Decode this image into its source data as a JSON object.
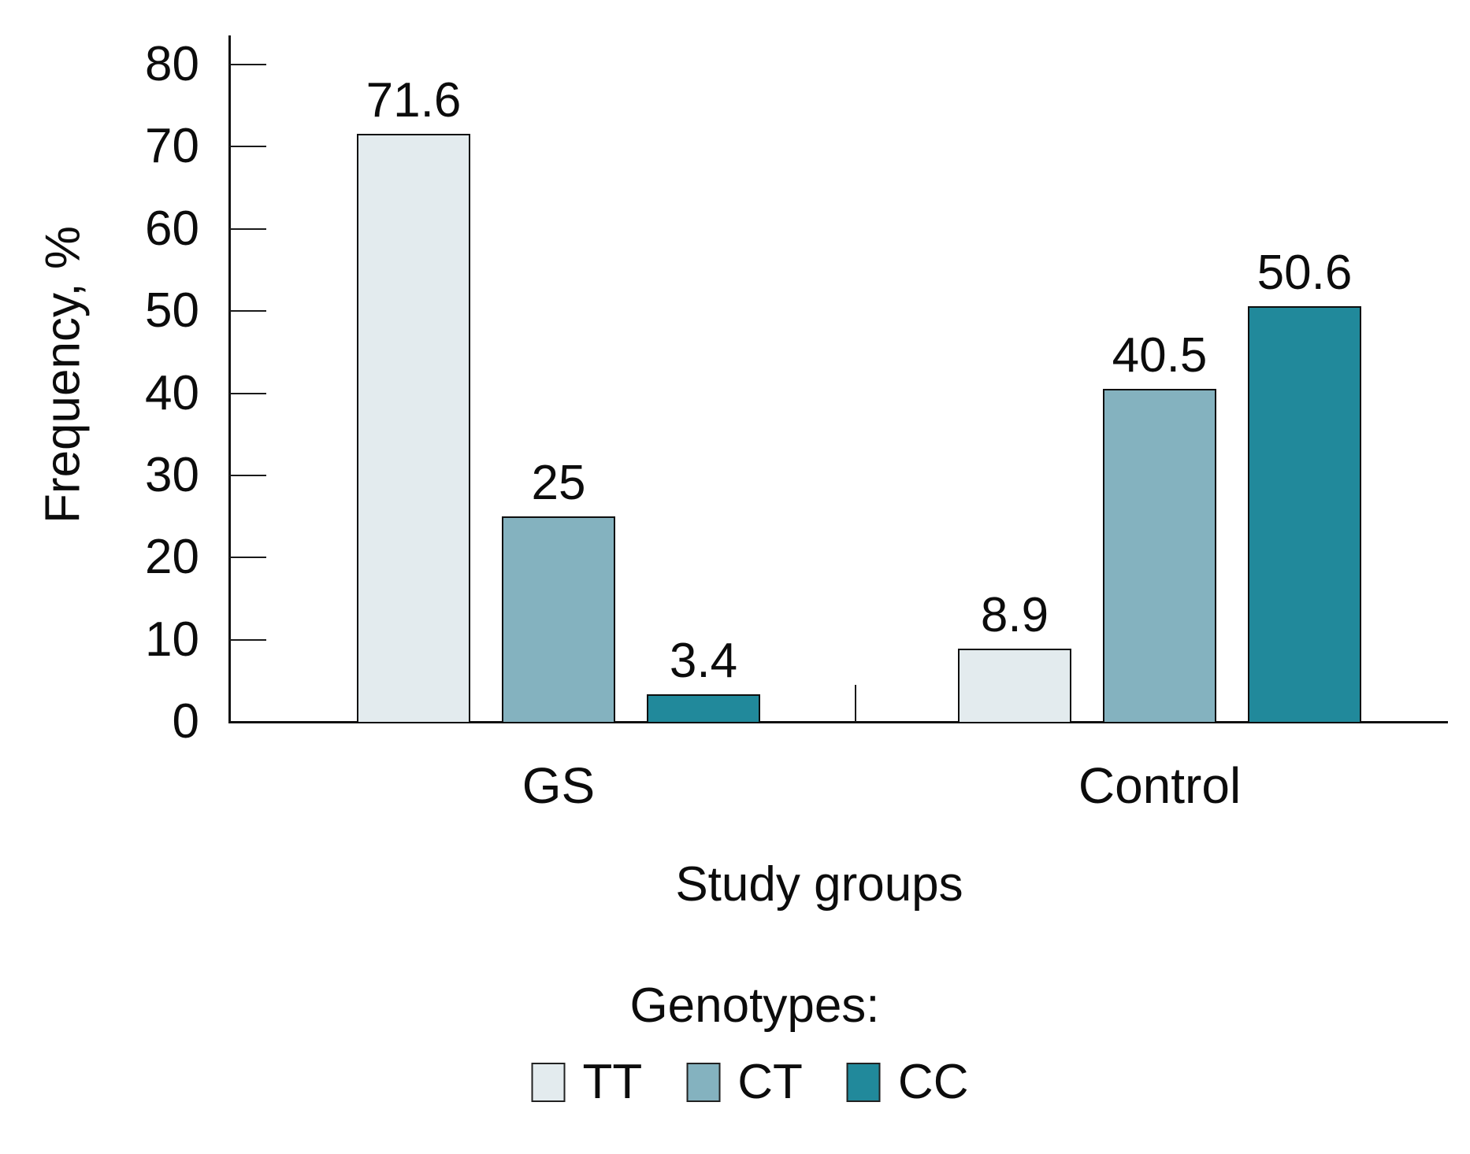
{
  "chart_data": {
    "type": "bar",
    "title": "",
    "ylabel": "Frequency, %",
    "xlabel": "Study groups",
    "categories": [
      "GS",
      "Control"
    ],
    "series": [
      {
        "name": "TT",
        "color": "#e3ebee",
        "values": [
          71.6,
          8.9
        ],
        "value_labels": [
          "71.6",
          "8.9"
        ]
      },
      {
        "name": "CT",
        "color": "#84b2bf",
        "values": [
          25,
          40.5
        ],
        "value_labels": [
          "25",
          "40.5"
        ]
      },
      {
        "name": "CC",
        "color": "#21899b",
        "values": [
          3.4,
          50.6
        ],
        "value_labels": [
          "3.4",
          "50.6"
        ]
      }
    ],
    "ylim": [
      0,
      80
    ],
    "yticks": [
      0,
      10,
      20,
      30,
      40,
      50,
      60,
      70,
      80
    ],
    "grid": false,
    "legend_title": "Genotypes:",
    "legend": [
      "TT",
      "CT",
      "CC"
    ],
    "legend_position": "bottom-center"
  }
}
